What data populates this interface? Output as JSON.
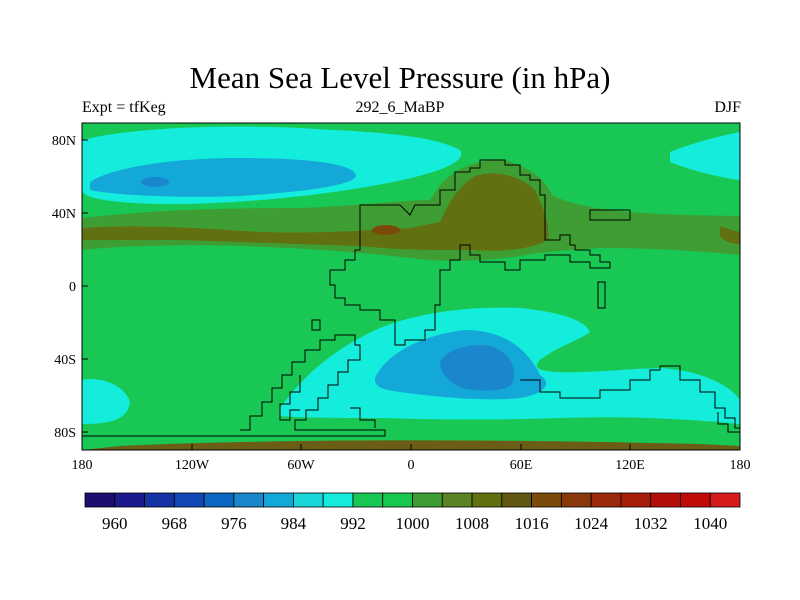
{
  "title": "Mean Sea Level Pressure (in hPa)",
  "left_label": "Expt = tfKeg",
  "center_label": "292_6_MaBP",
  "right_label": "DJF",
  "axes": {
    "x_ticks": [
      "180",
      "120W",
      "60W",
      "0",
      "60E",
      "120E",
      "180"
    ],
    "y_ticks": [
      "80N",
      "40N",
      "0",
      "40S",
      "80S"
    ]
  },
  "colorbar": {
    "labels": [
      "960",
      "968",
      "976",
      "984",
      "992",
      "1000",
      "1008",
      "1016",
      "1024",
      "1032",
      "1040"
    ],
    "colors": [
      "#1e0c6e",
      "#1a1a8c",
      "#1532a5",
      "#1248b5",
      "#0b68c2",
      "#1a86cc",
      "#14a8d8",
      "#19d6d8",
      "#14ecdc",
      "#19c854",
      "#19c850",
      "#3f9e33",
      "#5c8425",
      "#617010",
      "#5f5810",
      "#7a4a0a",
      "#8a3a0a",
      "#9a2a0a",
      "#a81c0a",
      "#b40e0a",
      "#c00a0a",
      "#d41a1a"
    ]
  },
  "legend_levels": {
    "pale_cyan": "1000",
    "green": "1008",
    "olive": "1016",
    "dark_olive": "1024",
    "cyan": "992",
    "blue": "984",
    "dark_blue": "976"
  }
}
